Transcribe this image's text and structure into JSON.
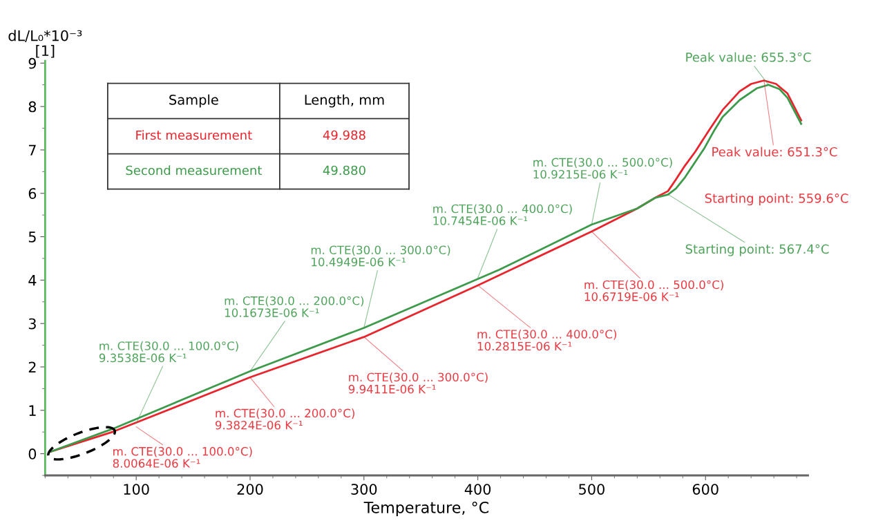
{
  "chart_data": {
    "type": "line",
    "xlabel": "Temperature, °C",
    "ylabel": "dL/L₀*10⁻³\n[1]",
    "xlim": [
      20,
      690
    ],
    "ylim": [
      -0.5,
      9.05
    ],
    "xticks": [
      100,
      200,
      300,
      400,
      500,
      600
    ],
    "yticks": [
      0,
      1,
      2,
      3,
      4,
      5,
      6,
      7,
      8,
      9
    ],
    "grid": false,
    "legend": "top left",
    "marker": "none",
    "line_style": "solid",
    "series": [
      {
        "name": "First measurement",
        "color": "#e8242c",
        "x": [
          25,
          80,
          200,
          300,
          400,
          500,
          540,
          556,
          567,
          574,
          582,
          591,
          603,
          615,
          630,
          640,
          651.3,
          662,
          672,
          684
        ],
        "values": [
          0.05,
          0.51,
          1.76,
          2.69,
          3.88,
          5.12,
          5.65,
          5.9,
          6.05,
          6.32,
          6.64,
          6.96,
          7.45,
          7.92,
          8.35,
          8.52,
          8.6,
          8.52,
          8.3,
          7.68
        ]
      },
      {
        "name": "Second measurement",
        "color": "#3c9a4a",
        "x": [
          25,
          80,
          200,
          300,
          419,
          500,
          540,
          556,
          567,
          574,
          582,
          599,
          607,
          615,
          630,
          645,
          655.3,
          665,
          672,
          684
        ],
        "values": [
          0.05,
          0.58,
          1.9,
          2.9,
          4.24,
          5.28,
          5.65,
          5.9,
          5.97,
          6.11,
          6.37,
          7.04,
          7.42,
          7.76,
          8.15,
          8.42,
          8.5,
          8.4,
          8.2,
          7.6
        ]
      }
    ],
    "annotations": [
      {
        "text": "m. CTE(30.0 ... 100.0°C)\n8.0064E-06 K⁻¹",
        "x": 100,
        "y": 0.62
      },
      {
        "text": "m. CTE(30.0 ... 200.0°C)\n9.3824E-06 K⁻¹",
        "x": 200,
        "y": 1.76
      },
      {
        "text": "m. CTE(30.0 ... 300.0°C)\n9.9411E-06 K⁻¹",
        "x": 300,
        "y": 2.69
      },
      {
        "text": "m. CTE(30.0 ... 400.0°C)\n10.2815E-06 K⁻¹",
        "x": 400,
        "y": 3.88
      },
      {
        "text": "m. CTE(30.0 ... 500.0°C)\n10.6719E-06 K⁻¹",
        "x": 500,
        "y": 5.12
      },
      "Starting point: 559.6°C",
      {
        "text": "Peak value: 651.3°C",
        "x": 651.3,
        "y": 8.6
      },
      {
        "text": "m. CTE(30.0 ... 100.0°C)\n9.3538E-06 K⁻¹",
        "x": 100,
        "y": 0.7
      },
      {
        "text": "m. CTE(30.0 ... 200.0°C)\n10.1673E-06 K⁻¹",
        "x": 200,
        "y": 1.9
      },
      {
        "text": "m. CTE(30.0 ... 300.0°C)\n10.4949E-06 K⁻¹",
        "x": 300,
        "y": 2.9
      },
      {
        "text": "m. CTE(30.0 ... 400.0°C)\n10.7454E-06 K⁻¹",
        "x": 400,
        "y": 4.05
      },
      {
        "text": "m. CTE(30.0 ... 500.0°C)\n10.9215E-06 K⁻¹",
        "x": 500,
        "y": 5.28
      },
      {
        "text": "Starting point: 567.4°C",
        "x": 567.4,
        "y": 5.97
      },
      {
        "text": "Peak value: 655.3°C",
        "x": 655.3,
        "y": 8.5
      },
      "Sample",
      "Length, mm",
      "49.988",
      "49.880"
    ]
  }
}
